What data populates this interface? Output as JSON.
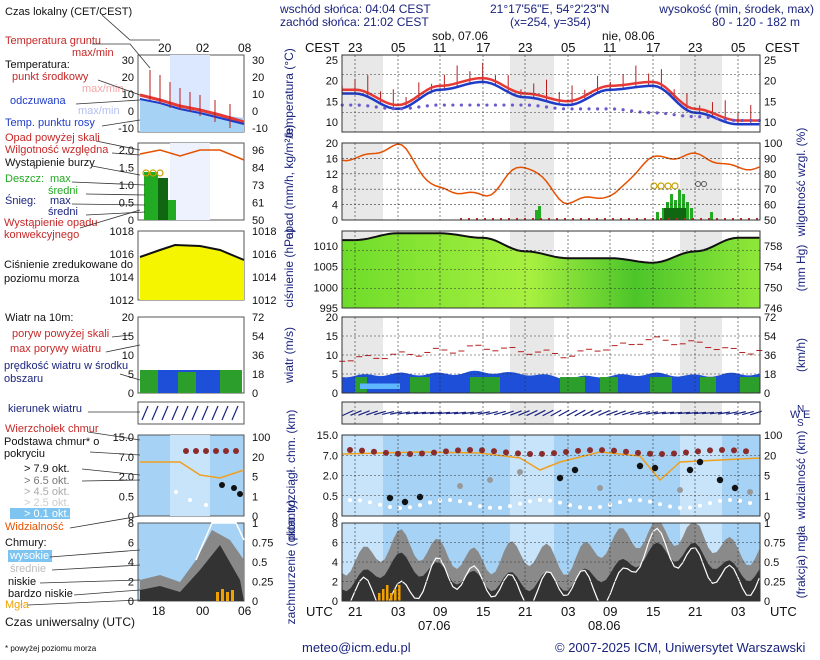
{
  "header": {
    "sunrise": "wschód słońca: 04:04 CEST",
    "sunset": "zachód słońca: 21:02 CEST",
    "coords": "21°17'56\"E, 54°2'23\"N",
    "grid": "(x=254, y=354)",
    "height_title": "wysokość (min, środek, max)",
    "height_values": "80 - 120 - 182 m"
  },
  "legend": {
    "local_time": "Czas lokalny (CET/CEST)",
    "local_ticks": [
      "20",
      "02",
      "08"
    ],
    "ground_temp": "Temperatura gruntu",
    "ground_temp_sub": "max/min",
    "temperature": "Temperatura:",
    "mid_point": "punkt środkowy",
    "max_min": "max/min",
    "perceived": "odczuwana",
    "perceived_sub": "max/min",
    "dew_point": "Temp. punktu rosy",
    "temp_ticks": [
      "30",
      "20",
      "10",
      "0",
      "-10"
    ],
    "precip_above": "Opad powyżej skali",
    "humidity": "Wilgotność względna",
    "storm": "Wystąpienie burzy",
    "rain": "Deszcz:",
    "snow": "Śnieg:",
    "max": "max",
    "mean": "średni",
    "conv": "Wystąpienie opadu konwekcyjnego",
    "precip_ticks": [
      "2.0",
      "1.5",
      "1.0",
      "0.5",
      "0"
    ],
    "hum_ticks": [
      "96",
      "84",
      "73",
      "61",
      "50"
    ],
    "pressure": "Ciśnienie zredukowane do poziomu morza",
    "press_ticks": [
      "1018",
      "1016",
      "1014",
      "1012"
    ],
    "wind": "Wiatr na 10m:",
    "gust_above": "poryw powyżej skali",
    "max_gust": "max porywy wiatru",
    "wind_speed": "prędkość wiatru w środku obszaru",
    "wind_ticks": [
      "20",
      "15",
      "10",
      "5",
      "0"
    ],
    "wind_kmh_ticks": [
      "72",
      "54",
      "36",
      "18",
      "0"
    ],
    "wind_dir": "kierunek wiatru",
    "cloud_top": "Wierzchołek chmur",
    "cloud_base": "Podstawa chmur* o pokryciu",
    "okt_79": "> 7.9 okt.",
    "okt_65": "> 6.5 okt.",
    "okt_45": "> 4.5 okt.",
    "okt_25": "> 2.5 okt.",
    "okt_01": "> 0.1 okt.",
    "base_ticks": [
      "15.0",
      "7.0",
      "2.0",
      "0.5",
      "0"
    ],
    "vis_ticks": [
      "100",
      "20",
      "5",
      "1",
      "0"
    ],
    "visibility": "Widzialność",
    "clouds": "Chmury:",
    "high": "wysokie",
    "middle": "średnie",
    "low": "niskie",
    "very_low": "bardzo niskie",
    "fog": "Mgła",
    "cloud_ticks": [
      "8",
      "6",
      "4",
      "2",
      "0"
    ],
    "fog_ticks": [
      "1",
      "0.75",
      "0.5",
      "0.25",
      "0"
    ],
    "utc": "Czas uniwersalny (UTC)",
    "utc_ticks": [
      "18",
      "00",
      "06"
    ],
    "footnote": "* powyżej poziomu morza"
  },
  "main": {
    "cest": "CEST",
    "utc": "UTC",
    "day1": "sob, 07.06",
    "day2": "nie, 08.06",
    "date1": "07.06",
    "date2": "08.06",
    "cest_ticks": [
      "23",
      "05",
      "11",
      "17",
      "23",
      "05",
      "11",
      "17",
      "23",
      "05"
    ],
    "utc_ticks": [
      "21",
      "03",
      "09",
      "15",
      "21",
      "03",
      "09",
      "15",
      "21",
      "03"
    ],
    "temp_label": "temperatura (°C)",
    "precip_label": "opad (mm/h, kg/m²/h)",
    "humidity_label": "wilgotność wzgl. (%)",
    "pressure_label": "ciśnienie (hPa)",
    "pressure_mmhg_label": "(mm Hg)",
    "wind_label": "wiatr (m/s)",
    "wind_kmh_label": "(km/h)",
    "cloud_base_label": "pion. rozciągł. chm. (km)",
    "vis_label": "widzialność (km)",
    "cloud_cover_label": "zachmurzenie (oktanty)",
    "fog_label": "(frakcja) mgła",
    "temp_ticks": [
      "25",
      "20",
      "15",
      "10"
    ],
    "precip_ticks": [
      "20",
      "16",
      "12",
      "8",
      "4",
      "0"
    ],
    "hum_ticks": [
      "100",
      "90",
      "80",
      "70",
      "60",
      "50"
    ],
    "press_ticks": [
      "1010",
      "1005",
      "1000",
      "995"
    ],
    "press_mm_ticks": [
      "758",
      "754",
      "750",
      "746"
    ],
    "wind_ticks": [
      "20",
      "15",
      "10",
      "5",
      "0"
    ],
    "wind_kmh_ticks": [
      "72",
      "54",
      "36",
      "18",
      "0"
    ],
    "base_ticks": [
      "15.0",
      "7.0",
      "2.0",
      "0.5",
      "0"
    ],
    "vis_ticks": [
      "100",
      "20",
      "5",
      "1",
      "0"
    ],
    "cloud_ticks": [
      "8",
      "6",
      "4",
      "2",
      "0"
    ],
    "fog_ticks": [
      "1",
      "0.75",
      "0.5",
      "0.25",
      "0"
    ],
    "compass_n": "N",
    "compass_w": "W",
    "compass_e": "E",
    "compass_s": "S"
  },
  "footer": {
    "email": "meteo@icm.edu.pl",
    "copyright": "© 2007-2025 ICM, Uniwersytet Warszawski"
  },
  "colors": {
    "temperature": "#e53935",
    "perceived": "#1e3cc8",
    "humidity": "#e65100",
    "rain_bar": "#22aa22",
    "pressure_fill": "#7ee83a",
    "wind_fill": "#1d4fd8",
    "frame": "#1a237e",
    "night_band": "#e8e8e8",
    "sky": "#a6d3f5"
  },
  "chart_data": [
    {
      "type": "line",
      "title": "temperatura",
      "x": [
        "23",
        "05",
        "11",
        "17",
        "23",
        "05",
        "11",
        "17",
        "23",
        "05"
      ],
      "series": [
        {
          "name": "punkt środkowy",
          "values": [
            18,
            14,
            19,
            21,
            17,
            15,
            19,
            20,
            13,
            10
          ]
        },
        {
          "name": "odczuwana",
          "values": [
            17,
            13,
            18,
            20,
            16,
            14,
            18,
            19,
            12,
            9
          ]
        },
        {
          "name": "Temp. punktu rosy",
          "values": [
            14,
            13,
            14,
            14,
            14,
            13,
            13,
            12,
            11,
            10
          ]
        }
      ],
      "ylim": [
        7,
        27
      ]
    },
    {
      "type": "line",
      "title": "wilgotność wzgl.",
      "x": [
        "23",
        "05",
        "11",
        "17",
        "23",
        "05",
        "11",
        "17",
        "23",
        "05"
      ],
      "series": [
        {
          "name": "Wilgotność względna",
          "values": [
            90,
            98,
            70,
            66,
            85,
            62,
            66,
            90,
            92,
            84
          ]
        }
      ],
      "ylim": [
        50,
        100
      ]
    },
    {
      "type": "area",
      "title": "ciśnienie",
      "x": [
        "23",
        "05",
        "11",
        "17",
        "23",
        "05",
        "11",
        "17",
        "23",
        "05"
      ],
      "series": [
        {
          "name": "Ciśnienie",
          "values": [
            1010,
            1011.5,
            1011.5,
            1010.5,
            1007.5,
            1006,
            1006,
            1005,
            1007.5,
            1010.5
          ]
        }
      ],
      "ylim": [
        995,
        1012
      ]
    },
    {
      "type": "area",
      "title": "wiatr",
      "x": [
        "23",
        "05",
        "11",
        "17",
        "23",
        "05",
        "11",
        "17",
        "23",
        "05"
      ],
      "series": [
        {
          "name": "prędkość wiatru",
          "values": [
            4.5,
            5,
            5,
            5.5,
            5,
            4,
            4.5,
            5,
            4.5,
            5
          ]
        },
        {
          "name": "max porywy wiatru",
          "values": [
            9,
            10,
            11,
            12,
            11,
            10,
            12,
            14,
            13,
            11
          ]
        }
      ],
      "ylim": [
        0,
        20
      ]
    },
    {
      "type": "area",
      "title": "zachmurzenie",
      "x": [
        "23",
        "05",
        "11",
        "17",
        "23",
        "05",
        "11",
        "17",
        "23",
        "05"
      ],
      "series": [
        {
          "name": "bardzo niskie",
          "values": [
            2,
            4,
            3,
            2,
            2,
            2,
            3,
            5,
            5,
            3
          ]
        },
        {
          "name": "niskie",
          "values": [
            4,
            6,
            5,
            4,
            5,
            4,
            6,
            7,
            7,
            5
          ]
        }
      ],
      "ylim": [
        0,
        8
      ]
    }
  ]
}
